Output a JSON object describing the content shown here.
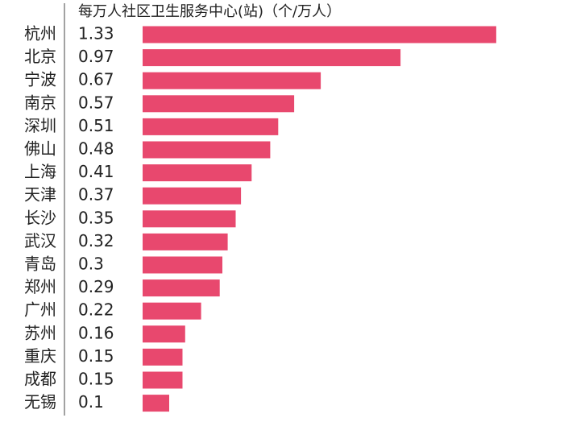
{
  "chart_data": {
    "type": "bar",
    "orientation": "horizontal",
    "title": "每万人社区卫生服务中心(站)（个/万人）",
    "categories": [
      "杭州",
      "北京",
      "宁波",
      "南京",
      "深圳",
      "佛山",
      "上海",
      "天津",
      "长沙",
      "武汉",
      "青岛",
      "郑州",
      "广州",
      "苏州",
      "重庆",
      "成都",
      "无锡"
    ],
    "values": [
      1.33,
      0.97,
      0.67,
      0.57,
      0.51,
      0.48,
      0.41,
      0.37,
      0.35,
      0.32,
      0.3,
      0.29,
      0.22,
      0.16,
      0.15,
      0.15,
      0.1
    ],
    "color": "#e8486e"
  }
}
